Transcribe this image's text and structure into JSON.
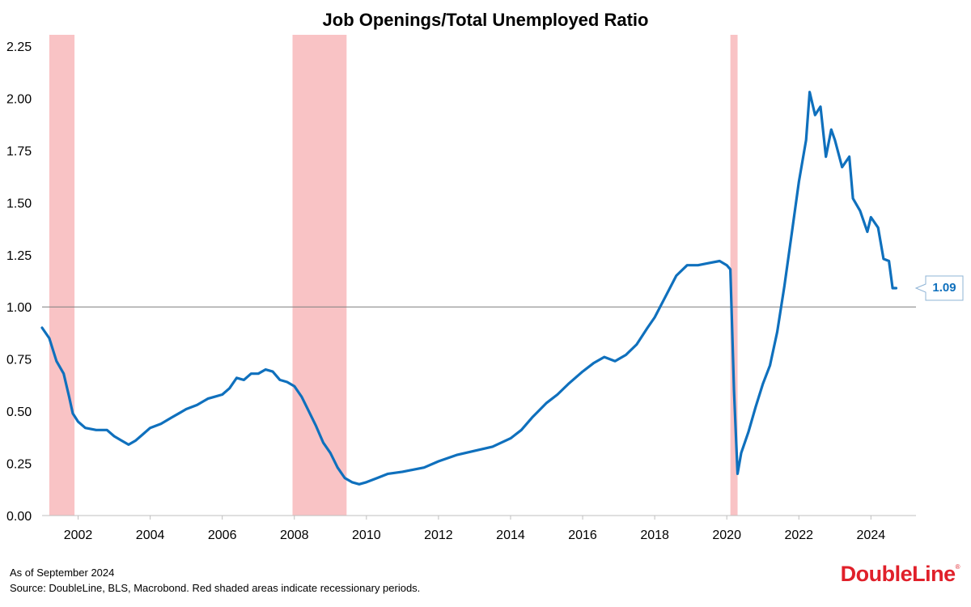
{
  "chart_data": {
    "type": "line",
    "title": "Job Openings/Total Unemployed Ratio",
    "xlabel": "",
    "ylabel": "",
    "xlim": [
      2001.0,
      2025.25
    ],
    "ylim": [
      0,
      2.25
    ],
    "x_ticks": [
      "2002",
      "2004",
      "2006",
      "2008",
      "2010",
      "2012",
      "2014",
      "2016",
      "2018",
      "2020",
      "2022",
      "2024"
    ],
    "y_ticks": [
      "0.00",
      "0.25",
      "0.50",
      "0.75",
      "1.00",
      "1.25",
      "1.50",
      "1.75",
      "2.00",
      "2.25"
    ],
    "reference_line": 1.0,
    "recessions": [
      [
        2001.2,
        2001.9
      ],
      [
        2007.95,
        2009.45
      ],
      [
        2020.1,
        2020.3
      ]
    ],
    "series": [
      {
        "color": "#0f70bd",
        "x": [
          2001.0,
          2001.2,
          2001.4,
          2001.6,
          2001.75,
          2001.85,
          2002.0,
          2002.2,
          2002.5,
          2002.8,
          2003.0,
          2003.2,
          2003.4,
          2003.6,
          2003.8,
          2004.0,
          2004.3,
          2004.6,
          2004.8,
          2005.0,
          2005.3,
          2005.6,
          2005.8,
          2006.0,
          2006.2,
          2006.4,
          2006.6,
          2006.8,
          2007.0,
          2007.2,
          2007.4,
          2007.6,
          2007.8,
          2008.0,
          2008.2,
          2008.4,
          2008.6,
          2008.8,
          2009.0,
          2009.2,
          2009.4,
          2009.6,
          2009.8,
          2010.0,
          2010.3,
          2010.6,
          2011.0,
          2011.3,
          2011.6,
          2012.0,
          2012.5,
          2013.0,
          2013.5,
          2014.0,
          2014.3,
          2014.6,
          2015.0,
          2015.3,
          2015.6,
          2016.0,
          2016.3,
          2016.6,
          2016.9,
          2017.2,
          2017.5,
          2017.8,
          2018.0,
          2018.3,
          2018.6,
          2018.9,
          2019.2,
          2019.5,
          2019.8,
          2020.0,
          2020.1,
          2020.2,
          2020.3,
          2020.4,
          2020.6,
          2020.8,
          2021.0,
          2021.2,
          2021.4,
          2021.6,
          2021.8,
          2022.0,
          2022.2,
          2022.3,
          2022.45,
          2022.6,
          2022.75,
          2022.9,
          2023.0,
          2023.2,
          2023.4,
          2023.5,
          2023.7,
          2023.9,
          2024.0,
          2024.2,
          2024.35,
          2024.5,
          2024.6,
          2024.7
        ],
        "values": [
          0.9,
          0.85,
          0.74,
          0.68,
          0.57,
          0.49,
          0.45,
          0.42,
          0.41,
          0.41,
          0.38,
          0.36,
          0.34,
          0.36,
          0.39,
          0.42,
          0.44,
          0.47,
          0.49,
          0.51,
          0.53,
          0.56,
          0.57,
          0.58,
          0.61,
          0.66,
          0.65,
          0.68,
          0.68,
          0.7,
          0.69,
          0.65,
          0.64,
          0.62,
          0.57,
          0.5,
          0.43,
          0.35,
          0.3,
          0.23,
          0.18,
          0.16,
          0.15,
          0.16,
          0.18,
          0.2,
          0.21,
          0.22,
          0.23,
          0.26,
          0.29,
          0.31,
          0.33,
          0.37,
          0.41,
          0.47,
          0.54,
          0.58,
          0.63,
          0.69,
          0.73,
          0.76,
          0.74,
          0.77,
          0.82,
          0.9,
          0.95,
          1.05,
          1.15,
          1.2,
          1.2,
          1.21,
          1.22,
          1.2,
          1.18,
          0.6,
          0.2,
          0.3,
          0.4,
          0.52,
          0.63,
          0.72,
          0.88,
          1.1,
          1.35,
          1.6,
          1.8,
          2.03,
          1.92,
          1.96,
          1.72,
          1.85,
          1.8,
          1.67,
          1.72,
          1.52,
          1.46,
          1.36,
          1.43,
          1.38,
          1.23,
          1.22,
          1.09,
          1.09
        ]
      }
    ],
    "callout": {
      "label": "1.09",
      "value": 1.09
    }
  },
  "footnotes": {
    "as_of": "As of September 2024",
    "source": "Source: DoubleLine, BLS, Macrobond. Red shaded areas indicate recessionary periods."
  },
  "logo": {
    "text": "DoubleLine",
    "mark": "®",
    "color": "#e0202a"
  },
  "colors": {
    "line": "#0f70bd",
    "recession": "#f9c3c5",
    "reference": "#7f7f7f"
  }
}
